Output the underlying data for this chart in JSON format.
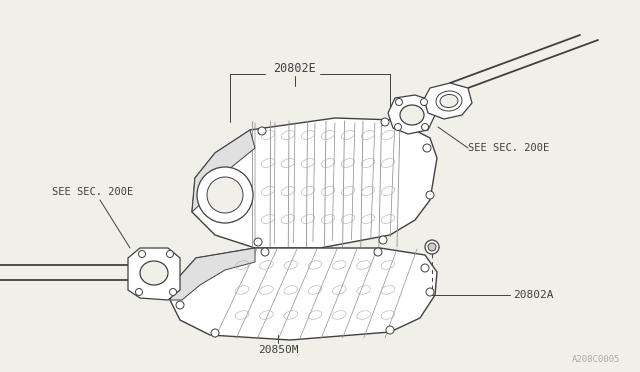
{
  "bg_color": "#f0efe8",
  "line_color": "#404040",
  "text_color": "#404040",
  "watermark": "A208C0005",
  "label_20802E": "20802E",
  "label_see_sec_right": "SEE SEC. 200E",
  "label_see_sec_left": "SEE SEC. 200E",
  "label_20802A": "20802A",
  "label_20850M": "20850M",
  "figsize": [
    6.4,
    3.72
  ],
  "dpi": 100
}
